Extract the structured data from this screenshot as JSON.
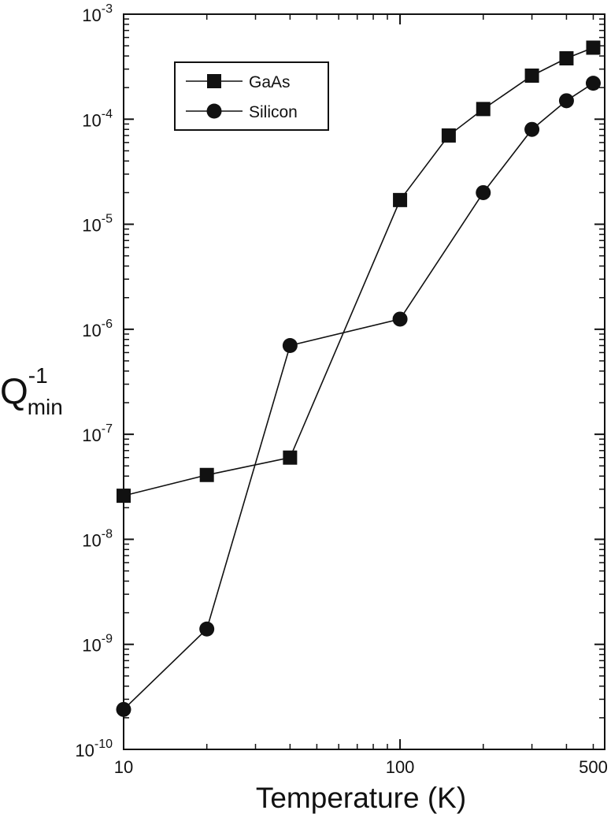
{
  "chart_data": {
    "type": "scatter",
    "xlabel": "Temperature (K)",
    "ylabel": {
      "base": "Q",
      "superscript": "-1",
      "subscript": "min"
    },
    "x_scale": "log",
    "y_scale": "log",
    "xlim": [
      10,
      550
    ],
    "ylim": [
      1e-10,
      0.001
    ],
    "grid": false,
    "legend_position": "top-left",
    "x_ticks": [
      {
        "value": 10,
        "label": "10"
      },
      {
        "value": 100,
        "label": "100"
      },
      {
        "value": 500,
        "label": "500"
      }
    ],
    "y_ticks": [
      {
        "value": 1e-10,
        "base": "10",
        "exp": "-10"
      },
      {
        "value": 1e-09,
        "base": "10",
        "exp": "-9"
      },
      {
        "value": 1e-08,
        "base": "10",
        "exp": "-8"
      },
      {
        "value": 1e-07,
        "base": "10",
        "exp": "-7"
      },
      {
        "value": 1e-06,
        "base": "10",
        "exp": "-6"
      },
      {
        "value": 1e-05,
        "base": "10",
        "exp": "-5"
      },
      {
        "value": 0.0001,
        "base": "10",
        "exp": "-4"
      },
      {
        "value": 0.001,
        "base": "10",
        "exp": "-3"
      }
    ],
    "series": [
      {
        "name": "GaAs",
        "marker": "square",
        "x": [
          10,
          20,
          40,
          100,
          150,
          200,
          300,
          400,
          500
        ],
        "y": [
          2.6e-08,
          4.1e-08,
          6e-08,
          1.7e-05,
          7e-05,
          0.000125,
          0.00026,
          0.00038,
          0.00048
        ]
      },
      {
        "name": "Silicon",
        "marker": "circle",
        "x": [
          10,
          20,
          40,
          100,
          200,
          300,
          400,
          500
        ],
        "y": [
          2.4e-10,
          1.4e-09,
          7e-07,
          1.25e-06,
          2e-05,
          8e-05,
          0.00015,
          0.00022
        ]
      }
    ]
  }
}
